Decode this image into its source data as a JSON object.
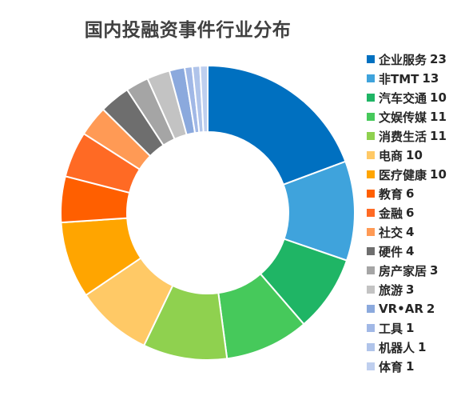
{
  "chart_data": {
    "type": "pie",
    "title": "国内投融资事件行业分布",
    "legend_position": "right",
    "slices": [
      {
        "label": "企业服务",
        "value": 23,
        "color": "#0070C0"
      },
      {
        "label": "非TMT",
        "value": 13,
        "color": "#3FA3DC"
      },
      {
        "label": "汽车交通",
        "value": 10,
        "color": "#1FB565"
      },
      {
        "label": "文娱传媒",
        "value": 11,
        "color": "#46C95B"
      },
      {
        "label": "消费生活",
        "value": 11,
        "color": "#8FD14F"
      },
      {
        "label": "电商",
        "value": 10,
        "color": "#FFC966"
      },
      {
        "label": "医疗健康",
        "value": 10,
        "color": "#FFA500"
      },
      {
        "label": "教育",
        "value": 6,
        "color": "#FF5F00"
      },
      {
        "label": "金融",
        "value": 6,
        "color": "#FF6A24"
      },
      {
        "label": "社交",
        "value": 4,
        "color": "#FF9A55"
      },
      {
        "label": "硬件",
        "value": 4,
        "color": "#6E6E6E"
      },
      {
        "label": "房产家居",
        "value": 3,
        "color": "#A5A5A5"
      },
      {
        "label": "旅游",
        "value": 3,
        "color": "#C3C3C3"
      },
      {
        "label": "VR•AR",
        "value": 2,
        "color": "#8BA9DD"
      },
      {
        "label": "工具",
        "value": 1,
        "color": "#A1B8E6"
      },
      {
        "label": "机器人",
        "value": 1,
        "color": "#B0C4EA"
      },
      {
        "label": "体育",
        "value": 1,
        "color": "#BFCFEF"
      }
    ]
  }
}
